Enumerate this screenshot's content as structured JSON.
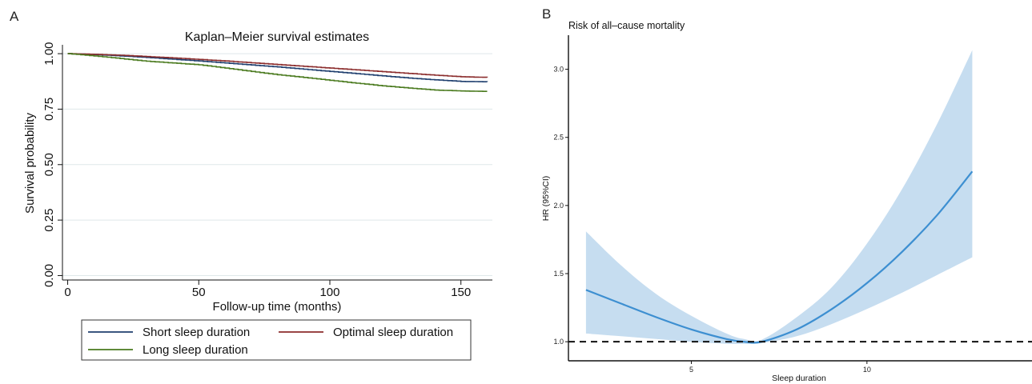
{
  "panel_a_letter": "A",
  "panel_b_letter": "B",
  "chart_data": [
    {
      "type": "line",
      "title": "Kaplan–Meier survival estimates",
      "xlabel": "Follow-up time (months)",
      "ylabel": "Survival probability",
      "xlim": [
        -2,
        162
      ],
      "ylim": [
        -0.02,
        1.04
      ],
      "x_ticks": [
        0,
        50,
        100,
        150
      ],
      "y_ticks": [
        0.0,
        0.25,
        0.5,
        0.75,
        1.0
      ],
      "y_tick_labels": [
        "0.00",
        "0.25",
        "0.50",
        "0.75",
        "1.00"
      ],
      "grid": true,
      "legend_position": "bottom",
      "series": [
        {
          "name": "Short sleep duration",
          "color": "#1f3f6e",
          "x": [
            0,
            10,
            20,
            30,
            40,
            50,
            60,
            70,
            80,
            90,
            100,
            110,
            120,
            130,
            140,
            150,
            160
          ],
          "y": [
            1.0,
            0.996,
            0.99,
            0.983,
            0.975,
            0.967,
            0.958,
            0.949,
            0.94,
            0.93,
            0.92,
            0.91,
            0.9,
            0.89,
            0.882,
            0.875,
            0.873
          ]
        },
        {
          "name": "Optimal sleep duration",
          "color": "#8b2c2c",
          "x": [
            0,
            10,
            20,
            30,
            40,
            50,
            60,
            70,
            80,
            90,
            100,
            110,
            120,
            130,
            140,
            150,
            160
          ],
          "y": [
            1.0,
            0.997,
            0.993,
            0.987,
            0.981,
            0.974,
            0.967,
            0.959,
            0.951,
            0.943,
            0.935,
            0.927,
            0.919,
            0.911,
            0.903,
            0.896,
            0.893
          ]
        },
        {
          "name": "Long sleep duration",
          "color": "#4a7a1e",
          "x": [
            0,
            10,
            20,
            30,
            40,
            50,
            60,
            70,
            80,
            90,
            100,
            110,
            120,
            130,
            140,
            150,
            160
          ],
          "y": [
            1.0,
            0.99,
            0.978,
            0.966,
            0.958,
            0.95,
            0.935,
            0.92,
            0.905,
            0.893,
            0.88,
            0.867,
            0.855,
            0.845,
            0.836,
            0.832,
            0.83
          ]
        }
      ]
    },
    {
      "type": "line",
      "title": "Risk of all–cause mortality",
      "xlabel": "Sleep duration",
      "ylabel": "HR (95%CI)",
      "xlim": [
        1.5,
        14.7
      ],
      "ylim": [
        0.86,
        3.25
      ],
      "x_ticks": [
        5,
        10
      ],
      "y_ticks": [
        1.0,
        1.5,
        2.0,
        2.5,
        3.0
      ],
      "y_tick_labels": [
        "1.0",
        "1.5",
        "2.0",
        "2.5",
        "3.0"
      ],
      "reference_line": 1.0,
      "line_color": "#3d8fd1",
      "band_color": "#c6ddf0",
      "x": [
        2.0,
        3.0,
        4.0,
        5.0,
        6.0,
        6.5,
        7.0,
        8.0,
        9.0,
        10.0,
        11.0,
        12.0,
        13.0
      ],
      "hr": [
        1.38,
        1.28,
        1.18,
        1.09,
        1.02,
        1.0,
        1.0,
        1.09,
        1.24,
        1.43,
        1.66,
        1.93,
        2.25
      ],
      "lower": [
        1.06,
        1.04,
        1.02,
        1.0,
        0.985,
        0.985,
        0.99,
        1.04,
        1.13,
        1.24,
        1.36,
        1.49,
        1.62
      ],
      "upper": [
        1.81,
        1.56,
        1.35,
        1.19,
        1.06,
        1.02,
        1.015,
        1.18,
        1.4,
        1.72,
        2.12,
        2.6,
        3.14
      ]
    }
  ]
}
